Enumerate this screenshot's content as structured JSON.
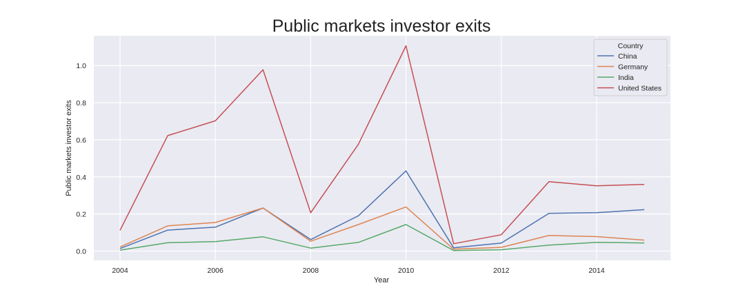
{
  "chart_data": {
    "type": "line",
    "title": "Public markets investor exits",
    "xlabel": "Year",
    "ylabel": "Public markets investor exits",
    "x": [
      2004,
      2005,
      2006,
      2007,
      2008,
      2009,
      2010,
      2011,
      2012,
      2013,
      2014,
      2015
    ],
    "xticks": [
      2004,
      2006,
      2008,
      2010,
      2012,
      2014
    ],
    "xtick_labels": [
      "2004",
      "2006",
      "2008",
      "2010",
      "2012",
      "2014"
    ],
    "yticks": [
      0.0,
      0.2,
      0.4,
      0.6,
      0.8,
      1.0
    ],
    "ytick_labels": [
      "0.0",
      "0.2",
      "0.4",
      "0.6",
      "0.8",
      "1.0"
    ],
    "xlim": [
      2003.45,
      2015.55
    ],
    "ylim": [
      -0.05,
      1.16
    ],
    "grid": true,
    "legend": {
      "title": "Country",
      "placement": "top-right"
    },
    "series": [
      {
        "name": "China",
        "color": "#4c72b0",
        "values": [
          0.014,
          0.113,
          0.129,
          0.232,
          0.062,
          0.19,
          0.432,
          0.018,
          0.043,
          0.203,
          0.207,
          0.223
        ]
      },
      {
        "name": "Germany",
        "color": "#dd8452",
        "values": [
          0.022,
          0.136,
          0.154,
          0.232,
          0.053,
          0.143,
          0.238,
          0.01,
          0.02,
          0.084,
          0.078,
          0.059
        ]
      },
      {
        "name": "India",
        "color": "#55a868",
        "values": [
          0.005,
          0.045,
          0.051,
          0.077,
          0.016,
          0.047,
          0.143,
          0.003,
          0.007,
          0.032,
          0.047,
          0.044
        ]
      },
      {
        "name": "United States",
        "color": "#c44e52",
        "values": [
          0.112,
          0.622,
          0.702,
          0.977,
          0.207,
          0.575,
          1.106,
          0.04,
          0.088,
          0.374,
          0.352,
          0.359
        ]
      }
    ]
  }
}
